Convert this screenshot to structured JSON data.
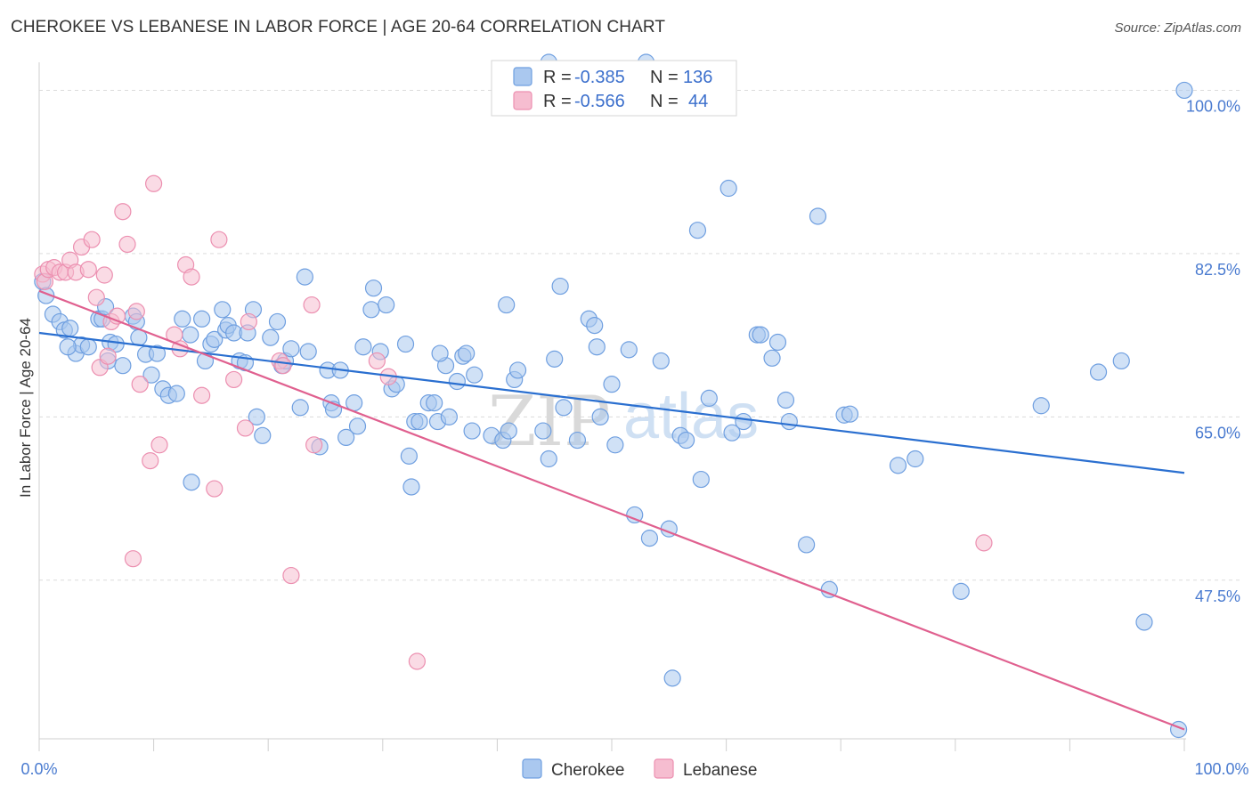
{
  "title": "CHEROKEE VS LEBANESE IN LABOR FORCE | AGE 20-64 CORRELATION CHART",
  "source": "Source: ZipAtlas.com",
  "watermark": {
    "zip": "ZIP",
    "atlas": "atlas"
  },
  "chart_data": {
    "type": "scatter",
    "xlabel": "",
    "ylabel": "In Labor Force | Age 20-64",
    "xlim": [
      0,
      100
    ],
    "ylim": [
      30.5,
      103
    ],
    "x_tick_labels": {
      "left": "0.0%",
      "right": "100.0%"
    },
    "y_ticks": [
      {
        "value": 100.0,
        "label": "100.0%"
      },
      {
        "value": 82.5,
        "label": "82.5%"
      },
      {
        "value": 65.0,
        "label": "65.0%"
      },
      {
        "value": 47.5,
        "label": "47.5%"
      }
    ],
    "grid": true,
    "legend_position": "top-center",
    "legend": [
      {
        "r_label": "R =",
        "r_value": "-0.385",
        "n_label": "N =",
        "n_value": "136"
      },
      {
        "r_label": "R =",
        "r_value": "-0.566",
        "n_label": "N =",
        "n_value": "44"
      }
    ],
    "series": [
      {
        "name": "Cherokee",
        "color": "#6f9fe0",
        "fill": "#aac8ef",
        "line_color": "#2a6fd0",
        "trend": {
          "x": [
            0,
            100
          ],
          "y": [
            74.0,
            59.0
          ]
        },
        "points": [
          [
            0.3,
            79.5
          ],
          [
            0.6,
            78.0
          ],
          [
            1.2,
            76.0
          ],
          [
            1.8,
            75.2
          ],
          [
            2.2,
            74.3
          ],
          [
            2.7,
            74.5
          ],
          [
            3.2,
            71.8
          ],
          [
            3.7,
            72.7
          ],
          [
            4.3,
            72.5
          ],
          [
            5.2,
            75.5
          ],
          [
            5.5,
            75.5
          ],
          [
            5.8,
            76.8
          ],
          [
            6.2,
            73.0
          ],
          [
            6.7,
            72.8
          ],
          [
            7.3,
            70.5
          ],
          [
            8.2,
            75.8
          ],
          [
            8.7,
            73.5
          ],
          [
            8.5,
            75.2
          ],
          [
            9.3,
            71.7
          ],
          [
            9.8,
            69.5
          ],
          [
            10.3,
            71.8
          ],
          [
            10.8,
            68.0
          ],
          [
            11.3,
            67.3
          ],
          [
            12.0,
            67.5
          ],
          [
            12.5,
            75.5
          ],
          [
            13.2,
            73.8
          ],
          [
            13.3,
            58.0
          ],
          [
            14.2,
            75.5
          ],
          [
            14.5,
            71.0
          ],
          [
            15.0,
            72.8
          ],
          [
            15.3,
            73.3
          ],
          [
            16.0,
            76.5
          ],
          [
            16.3,
            74.3
          ],
          [
            16.5,
            74.8
          ],
          [
            17.0,
            74.0
          ],
          [
            17.5,
            71.0
          ],
          [
            18.2,
            74.0
          ],
          [
            18.7,
            76.5
          ],
          [
            19.0,
            65.0
          ],
          [
            19.5,
            63.0
          ],
          [
            20.2,
            73.5
          ],
          [
            20.8,
            75.2
          ],
          [
            21.2,
            70.5
          ],
          [
            21.5,
            71.0
          ],
          [
            22.0,
            72.3
          ],
          [
            22.8,
            66.0
          ],
          [
            23.2,
            80.0
          ],
          [
            23.5,
            72.0
          ],
          [
            24.5,
            61.8
          ],
          [
            25.2,
            70.0
          ],
          [
            25.5,
            66.5
          ],
          [
            25.7,
            65.8
          ],
          [
            26.3,
            70.0
          ],
          [
            26.8,
            62.8
          ],
          [
            27.5,
            66.5
          ],
          [
            27.8,
            64.0
          ],
          [
            28.3,
            72.5
          ],
          [
            29.0,
            76.5
          ],
          [
            29.2,
            78.8
          ],
          [
            29.8,
            72.0
          ],
          [
            30.3,
            77.0
          ],
          [
            30.8,
            68.0
          ],
          [
            31.2,
            68.5
          ],
          [
            32.0,
            72.8
          ],
          [
            32.3,
            60.8
          ],
          [
            32.5,
            57.5
          ],
          [
            32.8,
            64.5
          ],
          [
            33.2,
            64.5
          ],
          [
            34.0,
            66.5
          ],
          [
            34.5,
            66.5
          ],
          [
            34.8,
            64.5
          ],
          [
            35.5,
            70.5
          ],
          [
            35.8,
            65.0
          ],
          [
            36.5,
            68.8
          ],
          [
            37.0,
            71.5
          ],
          [
            37.3,
            71.8
          ],
          [
            37.8,
            63.5
          ],
          [
            38.0,
            69.5
          ],
          [
            39.5,
            63.0
          ],
          [
            40.5,
            62.5
          ],
          [
            40.8,
            77.0
          ],
          [
            41.0,
            63.5
          ],
          [
            41.5,
            69.0
          ],
          [
            41.8,
            70.0
          ],
          [
            44.0,
            63.5
          ],
          [
            44.5,
            60.5
          ],
          [
            45.0,
            71.2
          ],
          [
            45.5,
            79.0
          ],
          [
            45.8,
            66.0
          ],
          [
            47.0,
            62.5
          ],
          [
            48.0,
            75.5
          ],
          [
            48.5,
            74.8
          ],
          [
            48.7,
            72.5
          ],
          [
            49.0,
            65.0
          ],
          [
            50.0,
            68.5
          ],
          [
            50.3,
            62.0
          ],
          [
            51.5,
            72.2
          ],
          [
            52.0,
            54.5
          ],
          [
            53.3,
            52.0
          ],
          [
            54.3,
            71.0
          ],
          [
            55.0,
            53.0
          ],
          [
            55.3,
            37.0
          ],
          [
            56.0,
            63.0
          ],
          [
            56.5,
            62.5
          ],
          [
            57.5,
            85.0
          ],
          [
            57.8,
            58.3
          ],
          [
            58.5,
            67.0
          ],
          [
            60.2,
            89.5
          ],
          [
            60.5,
            63.3
          ],
          [
            61.5,
            64.5
          ],
          [
            62.7,
            73.8
          ],
          [
            63.0,
            73.8
          ],
          [
            64.0,
            71.3
          ],
          [
            64.5,
            73.0
          ],
          [
            65.2,
            66.8
          ],
          [
            65.5,
            64.5
          ],
          [
            67.0,
            51.3
          ],
          [
            68.0,
            86.5
          ],
          [
            69.0,
            46.5
          ],
          [
            70.3,
            65.2
          ],
          [
            70.8,
            65.3
          ],
          [
            75.0,
            59.8
          ],
          [
            76.5,
            60.5
          ],
          [
            80.5,
            46.3
          ],
          [
            87.5,
            66.2
          ],
          [
            92.5,
            69.8
          ],
          [
            94.5,
            71.0
          ],
          [
            96.5,
            43.0
          ],
          [
            99.5,
            31.5
          ],
          [
            100.0,
            100.0
          ],
          [
            44.5,
            103.0
          ],
          [
            53.0,
            103.0
          ],
          [
            35.0,
            71.8
          ],
          [
            18.0,
            70.8
          ],
          [
            6.0,
            71.0
          ],
          [
            2.5,
            72.5
          ]
        ]
      },
      {
        "name": "Lebanese",
        "color": "#ec8fb0",
        "fill": "#f6bdd0",
        "line_color": "#e0608f",
        "trend": {
          "x": [
            0,
            100
          ],
          "y": [
            78.5,
            31.5
          ]
        },
        "points": [
          [
            0.3,
            80.3
          ],
          [
            0.5,
            79.5
          ],
          [
            0.8,
            80.8
          ],
          [
            1.3,
            81.0
          ],
          [
            1.8,
            80.5
          ],
          [
            2.3,
            80.5
          ],
          [
            2.7,
            81.8
          ],
          [
            3.2,
            80.5
          ],
          [
            3.7,
            83.2
          ],
          [
            4.3,
            80.8
          ],
          [
            4.6,
            84.0
          ],
          [
            5.0,
            77.8
          ],
          [
            5.3,
            70.3
          ],
          [
            5.7,
            80.2
          ],
          [
            6.0,
            71.5
          ],
          [
            6.3,
            75.2
          ],
          [
            6.8,
            75.8
          ],
          [
            7.3,
            87.0
          ],
          [
            7.7,
            83.5
          ],
          [
            8.2,
            49.8
          ],
          [
            8.5,
            76.3
          ],
          [
            8.8,
            68.5
          ],
          [
            9.7,
            60.3
          ],
          [
            10.0,
            90.0
          ],
          [
            10.5,
            62.0
          ],
          [
            11.8,
            73.8
          ],
          [
            12.3,
            72.3
          ],
          [
            12.8,
            81.3
          ],
          [
            13.3,
            80.0
          ],
          [
            14.2,
            67.3
          ],
          [
            15.3,
            57.3
          ],
          [
            15.7,
            84.0
          ],
          [
            17.0,
            69.0
          ],
          [
            18.0,
            63.8
          ],
          [
            18.3,
            75.2
          ],
          [
            21.0,
            71.0
          ],
          [
            21.3,
            70.5
          ],
          [
            22.0,
            48.0
          ],
          [
            23.8,
            77.0
          ],
          [
            24.0,
            62.0
          ],
          [
            29.5,
            71.0
          ],
          [
            30.5,
            69.3
          ],
          [
            33.0,
            38.8
          ],
          [
            82.5,
            51.5
          ]
        ]
      }
    ]
  }
}
